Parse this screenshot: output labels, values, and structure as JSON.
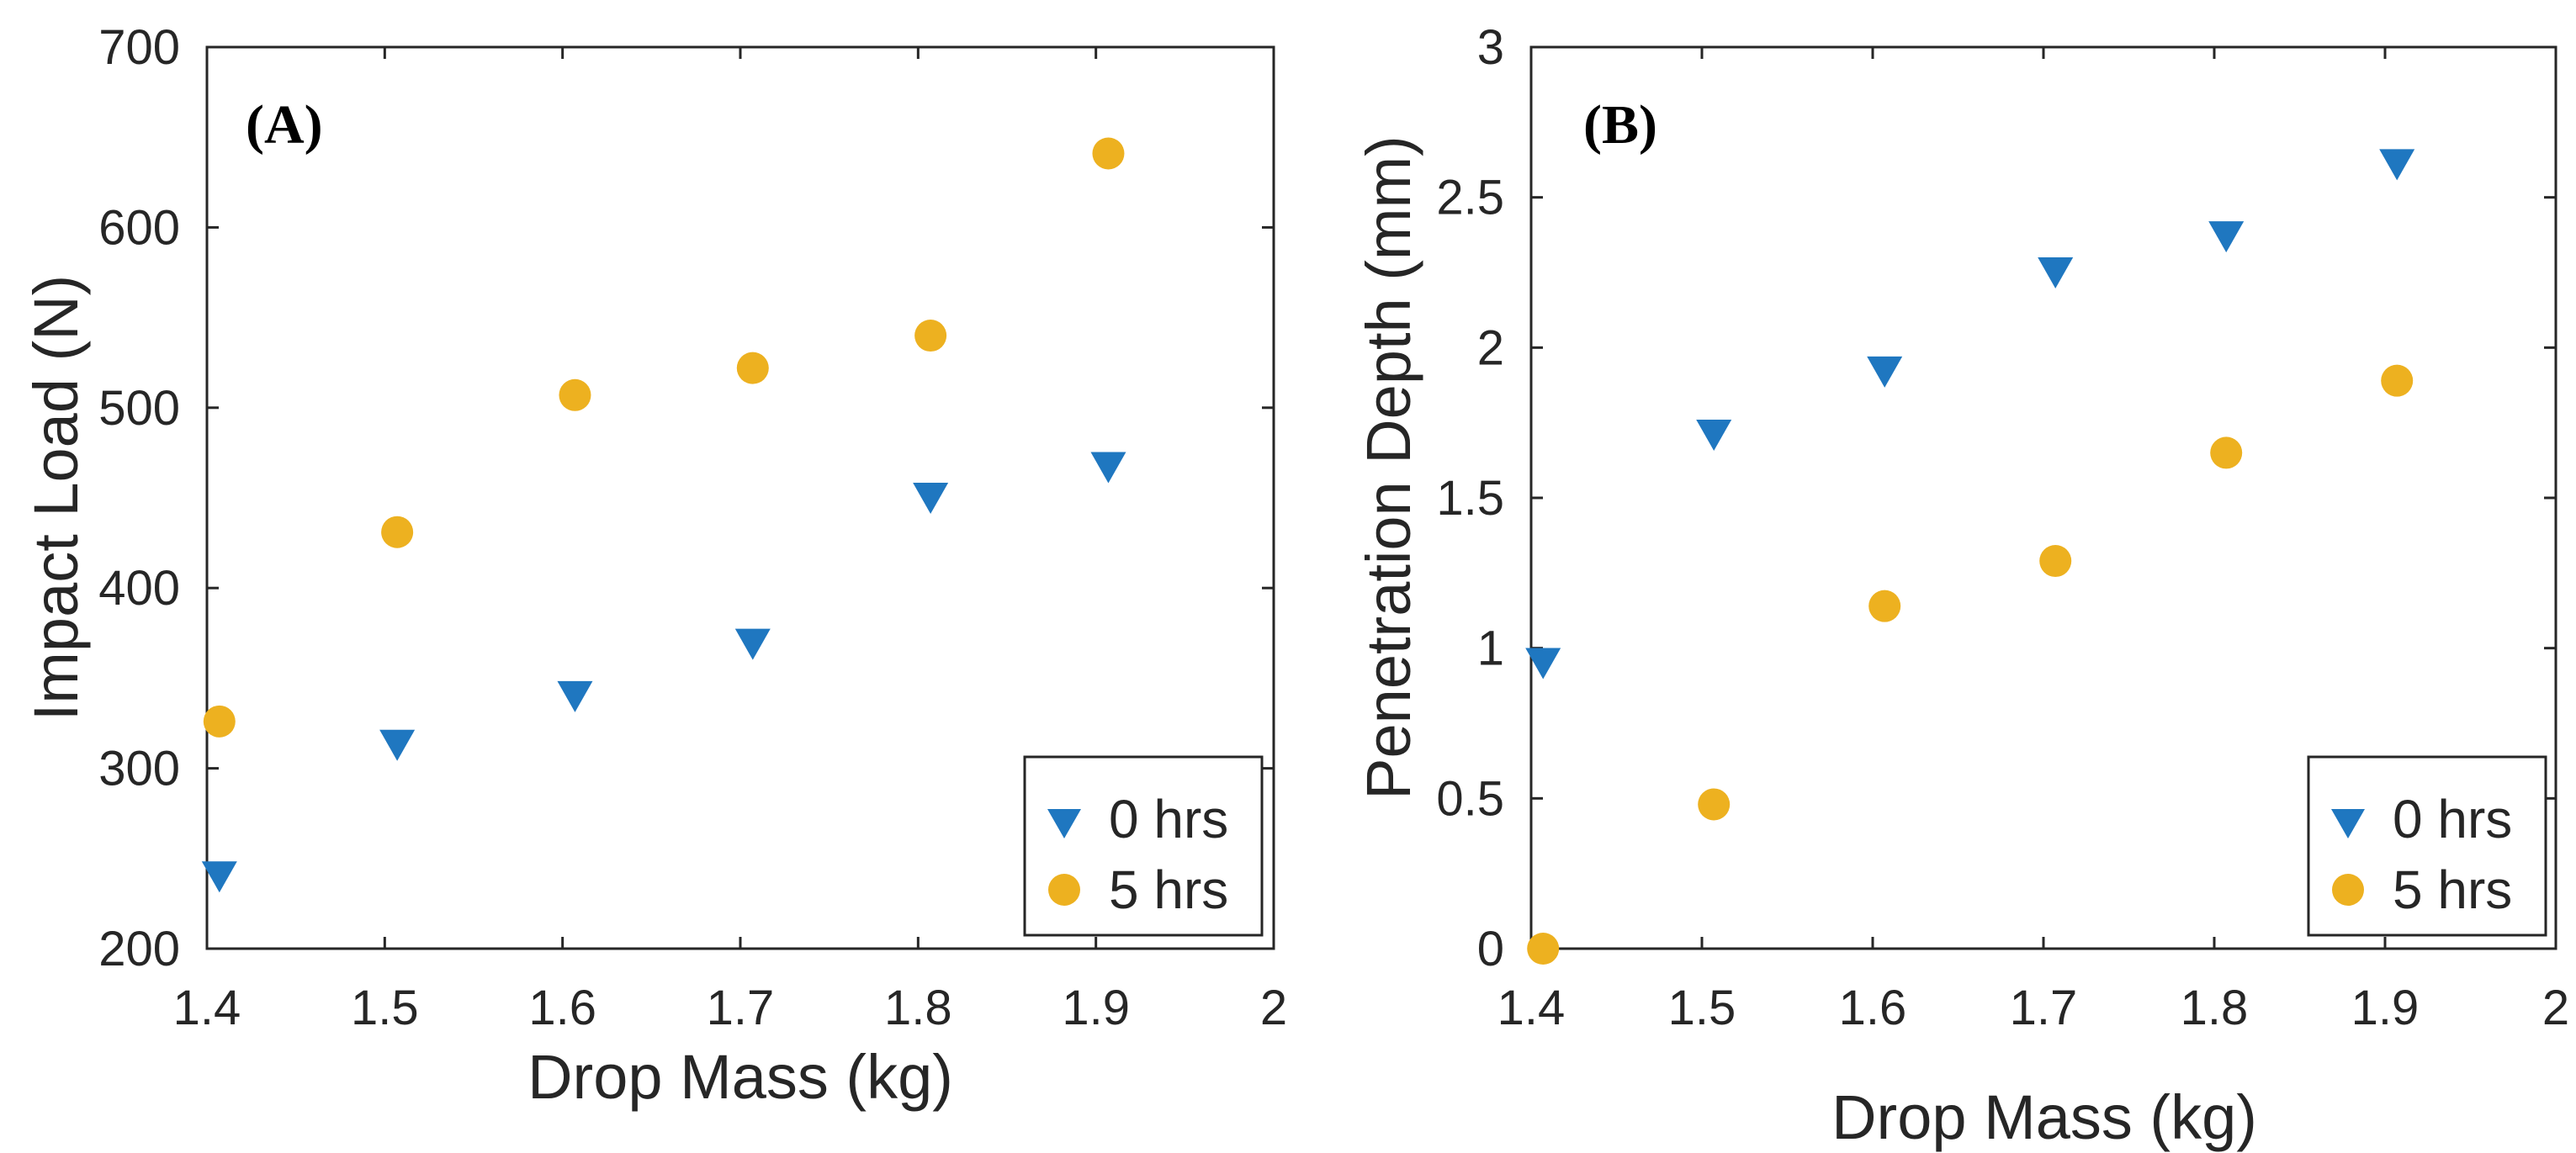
{
  "chart_data": [
    {
      "type": "scatter",
      "panel_label": "(A)",
      "xlabel": "Drop Mass (kg)",
      "ylabel": "Impact Load (N)",
      "xlim": [
        1.4,
        2
      ],
      "ylim": [
        200,
        700
      ],
      "xticks": [
        "1.4",
        "1.5",
        "1.6",
        "1.7",
        "1.8",
        "1.9",
        "2"
      ],
      "yticks": [
        "200",
        "300",
        "400",
        "500",
        "600",
        "700"
      ],
      "grid": false,
      "legend_position": "bottom-right",
      "series": [
        {
          "name": "0 hrs",
          "marker": "triangle-down",
          "color": "#1f77c0",
          "x": [
            1.407,
            1.507,
            1.607,
            1.707,
            1.807,
            1.907
          ],
          "y": [
            240,
            313,
            340,
            369,
            450,
            467
          ]
        },
        {
          "name": "5 hrs",
          "marker": "circle",
          "color": "#edb120",
          "x": [
            1.407,
            1.507,
            1.607,
            1.707,
            1.807,
            1.907
          ],
          "y": [
            326,
            431,
            507,
            522,
            540,
            641
          ]
        }
      ]
    },
    {
      "type": "scatter",
      "panel_label": "(B)",
      "xlabel": "Drop Mass (kg)",
      "ylabel": "Penetration Depth (mm)",
      "xlim": [
        1.4,
        2
      ],
      "ylim": [
        0,
        3
      ],
      "xticks": [
        "1.4",
        "1.5",
        "1.6",
        "1.7",
        "1.8",
        "1.9",
        "2"
      ],
      "yticks": [
        "0",
        "0.5",
        "1",
        "1.5",
        "2",
        "2.5",
        "3"
      ],
      "grid": false,
      "legend_position": "bottom-right",
      "series": [
        {
          "name": "0 hrs",
          "marker": "triangle-down",
          "color": "#1f77c0",
          "x": [
            1.407,
            1.507,
            1.607,
            1.707,
            1.807,
            1.907
          ],
          "y": [
            0.95,
            1.71,
            1.92,
            2.25,
            2.37,
            2.61
          ]
        },
        {
          "name": "5 hrs",
          "marker": "circle",
          "color": "#edb120",
          "x": [
            1.407,
            1.507,
            1.607,
            1.707,
            1.807,
            1.907
          ],
          "y": [
            0.0,
            0.48,
            1.14,
            1.29,
            1.65,
            1.89
          ]
        }
      ]
    }
  ]
}
